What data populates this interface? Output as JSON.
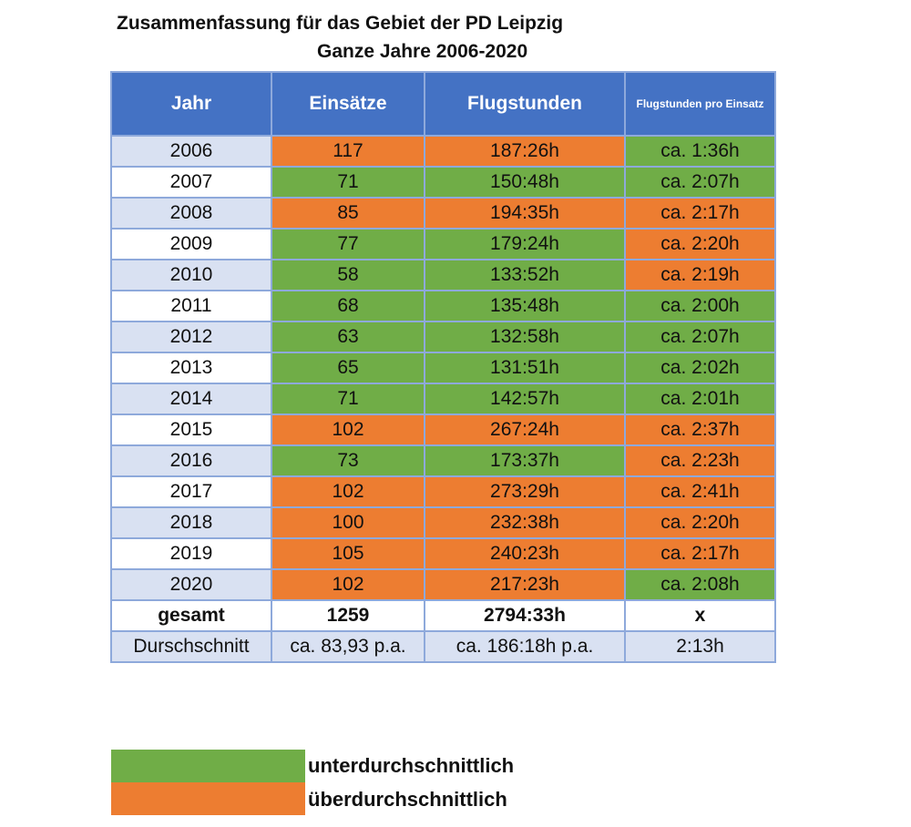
{
  "title_line1": "Zusammenfassung für das Gebiet der PD Leipzig",
  "title_line2": "Ganze Jahre 2006-2020",
  "colors": {
    "header": "#4472C4",
    "green": "#70AD47",
    "orange": "#ED7D31",
    "light": "#D9E1F2"
  },
  "headers": [
    "Jahr",
    "Einsätze",
    "Flugstunden",
    "Flugstunden pro Einsatz"
  ],
  "rows": [
    {
      "year": "2006",
      "einsaetze": "117",
      "flugstunden": "187:26h",
      "pro": "ca. 1:36h",
      "colors": [
        "o",
        "o",
        "g"
      ]
    },
    {
      "year": "2007",
      "einsaetze": "71",
      "flugstunden": "150:48h",
      "pro": "ca. 2:07h",
      "colors": [
        "g",
        "g",
        "g"
      ]
    },
    {
      "year": "2008",
      "einsaetze": "85",
      "flugstunden": "194:35h",
      "pro": "ca. 2:17h",
      "colors": [
        "o",
        "o",
        "o"
      ]
    },
    {
      "year": "2009",
      "einsaetze": "77",
      "flugstunden": "179:24h",
      "pro": "ca. 2:20h",
      "colors": [
        "g",
        "g",
        "o"
      ]
    },
    {
      "year": "2010",
      "einsaetze": "58",
      "flugstunden": "133:52h",
      "pro": "ca. 2:19h",
      "colors": [
        "g",
        "g",
        "o"
      ]
    },
    {
      "year": "2011",
      "einsaetze": "68",
      "flugstunden": "135:48h",
      "pro": "ca. 2:00h",
      "colors": [
        "g",
        "g",
        "g"
      ]
    },
    {
      "year": "2012",
      "einsaetze": "63",
      "flugstunden": "132:58h",
      "pro": "ca. 2:07h",
      "colors": [
        "g",
        "g",
        "g"
      ]
    },
    {
      "year": "2013",
      "einsaetze": "65",
      "flugstunden": "131:51h",
      "pro": "ca. 2:02h",
      "colors": [
        "g",
        "g",
        "g"
      ]
    },
    {
      "year": "2014",
      "einsaetze": "71",
      "flugstunden": "142:57h",
      "pro": "ca. 2:01h",
      "colors": [
        "g",
        "g",
        "g"
      ]
    },
    {
      "year": "2015",
      "einsaetze": "102",
      "flugstunden": "267:24h",
      "pro": "ca. 2:37h",
      "colors": [
        "o",
        "o",
        "o"
      ]
    },
    {
      "year": "2016",
      "einsaetze": "73",
      "flugstunden": "173:37h",
      "pro": "ca. 2:23h",
      "colors": [
        "g",
        "g",
        "o"
      ]
    },
    {
      "year": "2017",
      "einsaetze": "102",
      "flugstunden": "273:29h",
      "pro": "ca. 2:41h",
      "colors": [
        "o",
        "o",
        "o"
      ]
    },
    {
      "year": "2018",
      "einsaetze": "100",
      "flugstunden": "232:38h",
      "pro": "ca. 2:20h",
      "colors": [
        "o",
        "o",
        "o"
      ]
    },
    {
      "year": "2019",
      "einsaetze": "105",
      "flugstunden": "240:23h",
      "pro": "ca. 2:17h",
      "colors": [
        "o",
        "o",
        "o"
      ]
    },
    {
      "year": "2020",
      "einsaetze": "102",
      "flugstunden": "217:23h",
      "pro": "ca. 2:08h",
      "colors": [
        "o",
        "o",
        "g"
      ]
    }
  ],
  "total": {
    "label": "gesamt",
    "einsaetze": "1259",
    "flugstunden": "2794:33h",
    "pro": "x"
  },
  "average": {
    "label": "Durschschnitt",
    "einsaetze": "ca. 83,93 p.a.",
    "flugstunden": "ca. 186:18h p.a.",
    "pro": "2:13h"
  },
  "legend": {
    "green": "unterdurchschnittlich",
    "orange": "überdurchschnittlich"
  }
}
